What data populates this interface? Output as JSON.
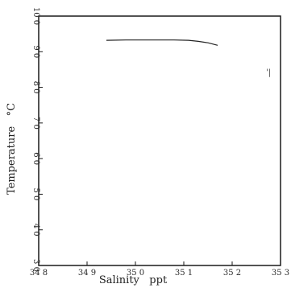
{
  "chart_data": {
    "type": "line",
    "title": "",
    "xlabel": "Salinity   ppt",
    "ylabel": "Temperature   °C",
    "xlim": [
      34.8,
      35.3
    ],
    "ylim": [
      3.0,
      10.0
    ],
    "x_ticks": [
      34.8,
      34.9,
      35.0,
      35.1,
      35.2,
      35.3
    ],
    "x_tick_labels": [
      "34 8",
      "34 9",
      "35 0",
      "35 1",
      "35 2",
      "35 3"
    ],
    "y_ticks": [
      3.0,
      4.0,
      5.0,
      6.0,
      7.0,
      8.0,
      9.0,
      10.0
    ],
    "y_tick_labels": [
      "3 0",
      "4 0",
      "5 0",
      "6 0",
      "7 0",
      "8 0",
      "9 0",
      "10 0"
    ],
    "grid": false,
    "series": [
      {
        "x": [
          34.94,
          34.98,
          35.03,
          35.08,
          35.11,
          35.13,
          35.15,
          35.17
        ],
        "y": [
          9.32,
          9.33,
          9.33,
          9.33,
          9.32,
          9.29,
          9.25,
          9.18
        ],
        "color": "#222222"
      }
    ],
    "annotations": [
      {
        "text": "'|",
        "x": 35.27,
        "y": 8.35
      }
    ]
  }
}
